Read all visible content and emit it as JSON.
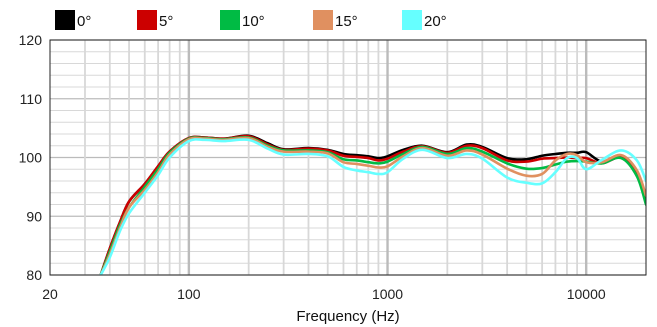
{
  "chart_data": {
    "type": "line",
    "title": "",
    "xlabel": "Frequency (Hz)",
    "ylabel": "",
    "x_scale": "log",
    "xlim": [
      20,
      20000
    ],
    "ylim": [
      80,
      120
    ],
    "x_ticks": [
      20,
      100,
      1000,
      10000
    ],
    "y_ticks": [
      80,
      90,
      100,
      110,
      120
    ],
    "grid": true,
    "legend_position": "top-left",
    "x": [
      36,
      40,
      45,
      50,
      60,
      70,
      80,
      100,
      120,
      150,
      200,
      250,
      300,
      400,
      500,
      600,
      700,
      800,
      900,
      1000,
      1200,
      1500,
      2000,
      2500,
      3000,
      4000,
      5000,
      6000,
      7000,
      8000,
      9000,
      10000,
      12000,
      15000,
      18000,
      20000
    ],
    "series": [
      {
        "name": "0°",
        "color": "#000000",
        "values": [
          80,
          84.5,
          89,
          92.5,
          95.5,
          98.5,
          101,
          103.3,
          103.4,
          103.2,
          103.7,
          102.4,
          101.4,
          101.6,
          101.3,
          100.6,
          100.4,
          100.2,
          99.9,
          100.2,
          101.3,
          102.0,
          100.9,
          102.2,
          101.8,
          99.9,
          99.7,
          100.3,
          100.6,
          100.8,
          100.8,
          100.9,
          99.3,
          100.2,
          97.5,
          92.5
        ]
      },
      {
        "name": "5°",
        "color": "#cc0000",
        "values": [
          80,
          84.5,
          89,
          92.5,
          95.5,
          98.5,
          101,
          103.3,
          103.4,
          103.2,
          103.6,
          102.2,
          101.3,
          101.5,
          101.2,
          100.3,
          100.1,
          99.9,
          99.5,
          99.8,
          101.0,
          101.9,
          100.8,
          102.0,
          101.6,
          99.5,
          99.3,
          99.8,
          99.9,
          100.0,
          99.9,
          99.9,
          99.0,
          100.0,
          97.2,
          92.3
        ]
      },
      {
        "name": "10°",
        "color": "#00bb44",
        "values": [
          80,
          84,
          88.5,
          91.5,
          95,
          98,
          100.8,
          103.2,
          103.3,
          103.1,
          103.4,
          102.0,
          101.2,
          101.2,
          100.9,
          99.7,
          99.5,
          99.2,
          99.0,
          99.3,
          100.6,
          101.8,
          100.6,
          101.6,
          101.0,
          99.0,
          98.1,
          98.2,
          98.8,
          99.3,
          99.4,
          99.3,
          99.0,
          99.9,
          96.8,
          92.0
        ]
      },
      {
        "name": "15°",
        "color": "#e09060",
        "values": [
          80,
          83.5,
          88,
          91.5,
          94.5,
          97.5,
          100.5,
          103.1,
          103.2,
          103.0,
          103.3,
          101.8,
          101.0,
          101.0,
          100.7,
          99.2,
          98.9,
          98.6,
          98.3,
          98.5,
          100.2,
          101.6,
          100.3,
          101.2,
          100.5,
          98.1,
          96.9,
          97.2,
          99.5,
          100.6,
          100.4,
          99.2,
          99.2,
          100.4,
          97.8,
          93.5
        ]
      },
      {
        "name": "20°",
        "color": "#66ffff",
        "values": [
          80,
          83,
          87.5,
          90.5,
          94,
          97,
          100,
          102.8,
          103.0,
          102.8,
          103.0,
          101.5,
          100.5,
          100.6,
          100.2,
          98.4,
          97.8,
          97.5,
          97.2,
          97.5,
          99.8,
          101.3,
          99.9,
          100.6,
          99.8,
          96.6,
          95.7,
          95.6,
          97.5,
          99.9,
          99.9,
          98.0,
          99.6,
          101.2,
          99.5,
          96.0
        ]
      }
    ]
  }
}
